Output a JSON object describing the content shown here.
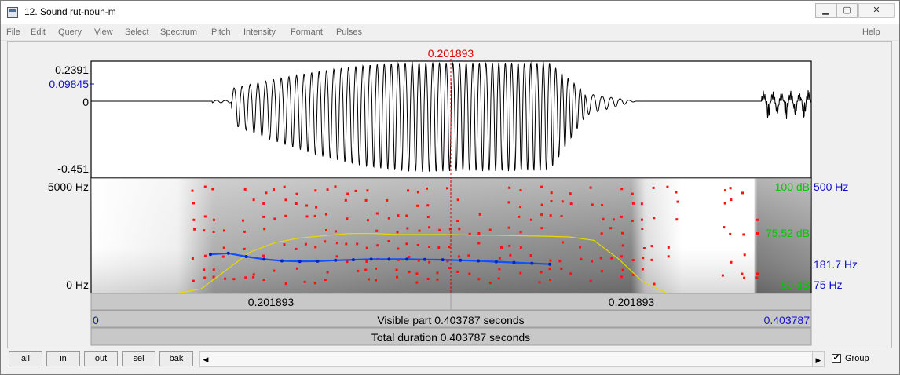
{
  "window": {
    "title": "12. Sound rut-noun-m",
    "min_icon": "minimize-icon",
    "max_icon": "maximize-icon",
    "close_icon": "close-icon"
  },
  "menu": {
    "items": [
      "File",
      "Edit",
      "Query",
      "View",
      "Select",
      "Spectrum",
      "Pitch",
      "Intensity",
      "Formant",
      "Pulses"
    ],
    "help": "Help"
  },
  "cursor": {
    "time_label": "0.201893",
    "time_s": 0.201893
  },
  "waveform": {
    "ymax_label": "0.2391",
    "ycursor_label": "0.09845",
    "yzero_label": "0",
    "ymin_label": "-0.451"
  },
  "spectrogram": {
    "freq_max_label": "5000 Hz",
    "freq_min_label": "0 Hz",
    "intensity_max_label": "100 dB",
    "intensity_cursor_label": "75.52 dB",
    "intensity_min_label": "50 dB",
    "pitch_max_label": "500 Hz",
    "pitch_cursor_label": "181.7 Hz",
    "pitch_min_label": "75 Hz"
  },
  "time_axis": {
    "left_segment_label": "0.201893",
    "right_segment_label": "0.201893",
    "start_label": "0",
    "end_label": "0.403787",
    "visible_part_label": "Visible part 0.403787 seconds",
    "total_duration_label": "Total duration 0.403787 seconds"
  },
  "colors": {
    "cursor": "#e00000",
    "axis_blue": "#1010c8",
    "intensity_green": "#00c800",
    "pitch": "#1050ff",
    "intensity_curve": "#e8d800",
    "formant": "#ff0000"
  },
  "buttons": {
    "all": "all",
    "in": "in",
    "out": "out",
    "sel": "sel",
    "bak": "bak"
  },
  "group": {
    "label": "Group",
    "checked": true,
    "check_mark": "✔"
  },
  "scroll": {
    "left_arrow": "◀",
    "right_arrow": "▶"
  },
  "pitch_contour_hz": [
    190,
    194,
    182,
    172,
    166,
    164,
    165,
    168,
    170,
    172,
    172,
    172,
    171,
    170,
    168,
    166,
    163,
    160,
    157,
    154
  ],
  "intensity_curve_db": [
    50,
    52,
    60,
    68,
    72,
    74,
    75,
    76,
    76,
    75.5,
    75.5,
    75.5,
    75.3,
    75.2,
    75,
    74.8,
    74.5,
    73,
    65,
    55,
    50
  ]
}
